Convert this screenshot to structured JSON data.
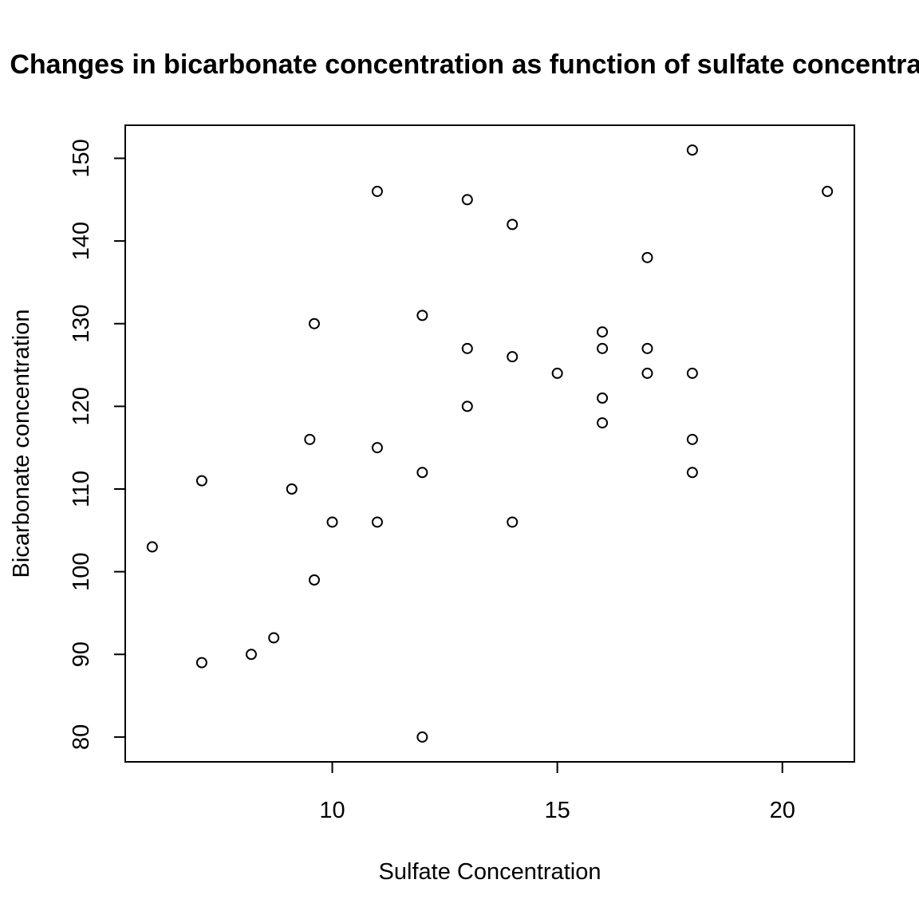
{
  "chart_data": {
    "type": "scatter",
    "title": "Changes in bicarbonate concentration as function of sulfate concentration",
    "xlabel": "Sulfate Concentration",
    "ylabel": "Bicarbonate concentration",
    "xlim": [
      5.4,
      21.6
    ],
    "ylim": [
      77,
      154
    ],
    "xticks": [
      10,
      15,
      20
    ],
    "yticks": [
      80,
      90,
      100,
      110,
      120,
      130,
      140,
      150
    ],
    "grid": false,
    "legend": "none",
    "marker": "open-circle",
    "points": [
      {
        "x": 6.0,
        "y": 103
      },
      {
        "x": 7.1,
        "y": 111
      },
      {
        "x": 7.1,
        "y": 89
      },
      {
        "x": 8.2,
        "y": 90
      },
      {
        "x": 8.7,
        "y": 92
      },
      {
        "x": 9.1,
        "y": 110
      },
      {
        "x": 9.5,
        "y": 116
      },
      {
        "x": 9.6,
        "y": 130
      },
      {
        "x": 9.6,
        "y": 99
      },
      {
        "x": 10.0,
        "y": 106
      },
      {
        "x": 11.0,
        "y": 146
      },
      {
        "x": 11.0,
        "y": 115
      },
      {
        "x": 11.0,
        "y": 106
      },
      {
        "x": 12.0,
        "y": 131
      },
      {
        "x": 12.0,
        "y": 112
      },
      {
        "x": 12.0,
        "y": 80
      },
      {
        "x": 13.0,
        "y": 145
      },
      {
        "x": 13.0,
        "y": 127
      },
      {
        "x": 13.0,
        "y": 120
      },
      {
        "x": 14.0,
        "y": 142
      },
      {
        "x": 14.0,
        "y": 126
      },
      {
        "x": 14.0,
        "y": 106
      },
      {
        "x": 15.0,
        "y": 124
      },
      {
        "x": 16.0,
        "y": 129
      },
      {
        "x": 16.0,
        "y": 127
      },
      {
        "x": 16.0,
        "y": 121
      },
      {
        "x": 16.0,
        "y": 118
      },
      {
        "x": 17.0,
        "y": 138
      },
      {
        "x": 17.0,
        "y": 127
      },
      {
        "x": 17.0,
        "y": 124
      },
      {
        "x": 18.0,
        "y": 151
      },
      {
        "x": 18.0,
        "y": 124
      },
      {
        "x": 18.0,
        "y": 116
      },
      {
        "x": 18.0,
        "y": 112
      },
      {
        "x": 21.0,
        "y": 146
      }
    ]
  }
}
